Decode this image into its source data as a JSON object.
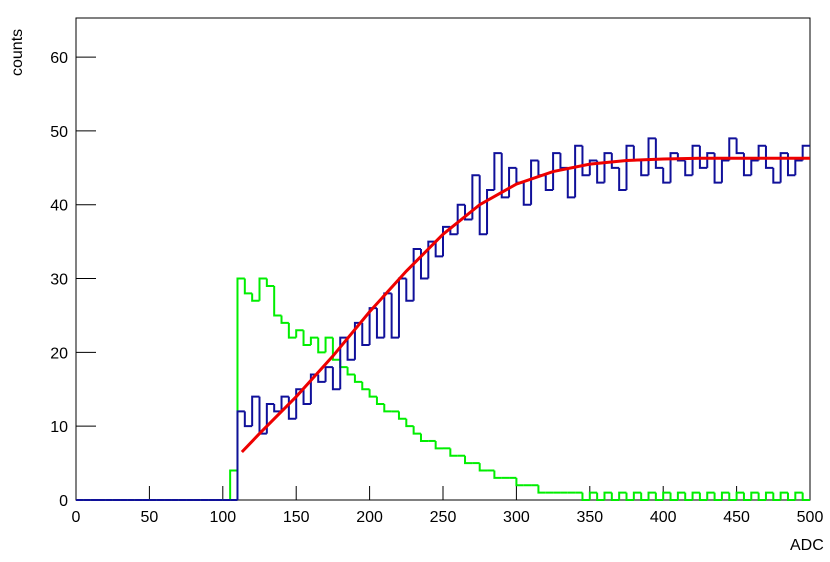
{
  "chart_data": {
    "type": "histogram",
    "xlabel": "ADC",
    "ylabel": "counts",
    "xlim": [
      0,
      500
    ],
    "ylim": [
      0,
      65.3
    ],
    "xticks": [
      0,
      50,
      100,
      150,
      200,
      250,
      300,
      350,
      400,
      450,
      500
    ],
    "yticks": [
      0,
      10,
      20,
      30,
      40,
      50,
      60
    ],
    "bins": [
      0,
      5,
      10,
      15,
      20,
      25,
      30,
      35,
      40,
      45,
      50,
      55,
      60,
      65,
      70,
      75,
      80,
      85,
      90,
      95,
      100,
      105,
      110,
      115,
      120,
      125,
      130,
      135,
      140,
      145,
      150,
      155,
      160,
      165,
      170,
      175,
      180,
      185,
      190,
      195,
      200,
      205,
      210,
      215,
      220,
      225,
      230,
      235,
      240,
      245,
      250,
      255,
      260,
      265,
      270,
      275,
      280,
      285,
      290,
      295,
      300,
      305,
      310,
      315,
      320,
      325,
      330,
      335,
      340,
      345,
      350,
      355,
      360,
      365,
      370,
      375,
      380,
      385,
      390,
      395,
      400,
      405,
      410,
      415,
      420,
      425,
      430,
      435,
      440,
      445,
      450,
      455,
      460,
      465,
      470,
      475,
      480,
      485,
      490,
      495,
      500
    ],
    "series": [
      {
        "color": "#00ee00",
        "values": [
          0,
          0,
          0,
          0,
          0,
          0,
          0,
          0,
          0,
          0,
          0,
          0,
          0,
          0,
          0,
          0,
          0,
          0,
          0,
          0,
          0,
          4,
          30,
          28,
          27,
          30,
          29,
          25,
          24,
          22,
          23,
          21,
          22,
          20,
          22,
          19,
          18,
          17,
          16,
          15,
          14,
          13,
          12,
          12,
          11,
          10,
          9,
          8,
          8,
          7,
          7,
          6,
          6,
          5,
          5,
          4,
          4,
          3,
          3,
          3,
          2,
          2,
          2,
          1,
          1,
          1,
          1,
          1,
          1,
          0,
          1,
          0,
          1,
          0,
          1,
          0,
          1,
          0,
          1,
          0,
          1,
          0,
          1,
          0,
          1,
          0,
          1,
          0,
          1,
          0,
          1,
          0,
          1,
          0,
          1,
          0,
          1,
          0,
          1,
          0
        ]
      },
      {
        "color": "#10109a",
        "values": [
          0,
          0,
          0,
          0,
          0,
          0,
          0,
          0,
          0,
          0,
          0,
          0,
          0,
          0,
          0,
          0,
          0,
          0,
          0,
          0,
          0,
          0,
          12,
          10,
          14,
          9,
          13,
          12,
          14,
          11,
          15,
          13,
          17,
          16,
          18,
          15,
          22,
          19,
          24,
          21,
          26,
          22,
          28,
          22,
          30,
          27,
          34,
          30,
          35,
          33,
          37,
          36,
          40,
          38,
          44,
          36,
          42,
          47,
          41,
          45,
          43,
          40,
          46,
          44,
          42,
          47,
          45,
          41,
          48,
          44,
          46,
          43,
          47,
          45,
          42,
          48,
          46,
          44,
          49,
          45,
          43,
          47,
          46,
          44,
          48,
          45,
          47,
          43,
          46,
          49,
          47,
          44,
          46,
          48,
          45,
          43,
          47,
          44,
          46,
          48
        ]
      }
    ],
    "fit": {
      "color": "#ee0000",
      "x": [
        113,
        125,
        150,
        175,
        200,
        225,
        250,
        275,
        300,
        325,
        350,
        375,
        400,
        425,
        450,
        475,
        500
      ],
      "values": [
        6.5,
        9,
        14,
        19.5,
        25.5,
        31,
        36,
        40,
        42.8,
        44.5,
        45.5,
        46,
        46.2,
        46.3,
        46.3,
        46.3,
        46.3
      ]
    }
  }
}
